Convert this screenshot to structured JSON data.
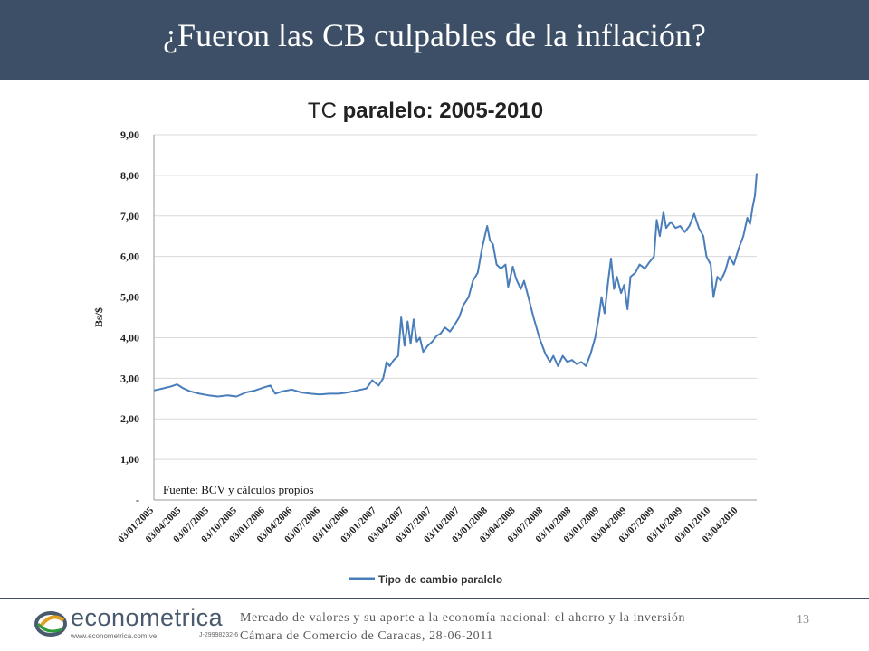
{
  "slide": {
    "title": "¿Fueron las CB culpables de la inflación?",
    "page_number": "13",
    "footer_line1": "Mercado de valores y su aporte a la economía nacional: el ahorro y la inversión",
    "footer_line2": "Cámara de Comercio de Caracas, 28-06-2011"
  },
  "logo": {
    "name": "econometrica",
    "url": "www.econometrica.com.ve",
    "rif": "J-29998232-6"
  },
  "colors": {
    "header": "#3d4f66",
    "series": "#4a7ebb",
    "grid": "#d9d9d9"
  },
  "chart_data": {
    "type": "line",
    "title_prefix": "TC ",
    "title_bold": "paralelo: 2005-2010",
    "ylabel": "Bs/$",
    "ylim": [
      0,
      9
    ],
    "y_ticks": [
      {
        "value": 0,
        "label": "-"
      },
      {
        "value": 1,
        "label": "1,00"
      },
      {
        "value": 2,
        "label": "2,00"
      },
      {
        "value": 3,
        "label": "3,00"
      },
      {
        "value": 4,
        "label": "4,00"
      },
      {
        "value": 5,
        "label": "5,00"
      },
      {
        "value": 6,
        "label": "6,00"
      },
      {
        "value": 7,
        "label": "7,00"
      },
      {
        "value": 8,
        "label": "8,00"
      },
      {
        "value": 9,
        "label": "9,00"
      }
    ],
    "x_range": [
      "2005-01-03",
      "2010-06-03"
    ],
    "x_tick_labels": [
      "03/01/2005",
      "03/04/2005",
      "03/07/2005",
      "03/10/2005",
      "03/01/2006",
      "03/04/2006",
      "03/07/2006",
      "03/10/2006",
      "03/01/2007",
      "03/04/2007",
      "03/07/2007",
      "03/10/2007",
      "03/01/2008",
      "03/04/2008",
      "03/07/2008",
      "03/10/2008",
      "03/01/2009",
      "03/04/2009",
      "03/07/2009",
      "03/10/2009",
      "03/01/2010",
      "03/04/2010"
    ],
    "grid": true,
    "legend": "bottom",
    "annotation": "Fuente: BCV y cálculos propios",
    "series": [
      {
        "name": "Tipo de cambio paralelo",
        "points": [
          [
            "2005-01-03",
            2.7
          ],
          [
            "2005-02-01",
            2.75
          ],
          [
            "2005-03-01",
            2.8
          ],
          [
            "2005-03-20",
            2.85
          ],
          [
            "2005-04-10",
            2.75
          ],
          [
            "2005-05-01",
            2.68
          ],
          [
            "2005-06-01",
            2.62
          ],
          [
            "2005-07-01",
            2.58
          ],
          [
            "2005-08-01",
            2.55
          ],
          [
            "2005-09-01",
            2.58
          ],
          [
            "2005-10-01",
            2.55
          ],
          [
            "2005-11-01",
            2.65
          ],
          [
            "2005-12-01",
            2.7
          ],
          [
            "2006-01-01",
            2.78
          ],
          [
            "2006-01-20",
            2.82
          ],
          [
            "2006-02-05",
            2.62
          ],
          [
            "2006-03-01",
            2.68
          ],
          [
            "2006-04-01",
            2.72
          ],
          [
            "2006-05-01",
            2.65
          ],
          [
            "2006-06-01",
            2.62
          ],
          [
            "2006-07-01",
            2.6
          ],
          [
            "2006-08-01",
            2.62
          ],
          [
            "2006-09-01",
            2.62
          ],
          [
            "2006-10-01",
            2.65
          ],
          [
            "2006-11-01",
            2.7
          ],
          [
            "2006-12-01",
            2.75
          ],
          [
            "2006-12-20",
            2.95
          ],
          [
            "2007-01-10",
            2.82
          ],
          [
            "2007-01-25",
            3.0
          ],
          [
            "2007-02-05",
            3.4
          ],
          [
            "2007-02-15",
            3.3
          ],
          [
            "2007-03-01",
            3.45
          ],
          [
            "2007-03-15",
            3.55
          ],
          [
            "2007-03-25",
            4.5
          ],
          [
            "2007-04-05",
            3.8
          ],
          [
            "2007-04-15",
            4.4
          ],
          [
            "2007-04-25",
            3.85
          ],
          [
            "2007-05-05",
            4.45
          ],
          [
            "2007-05-15",
            3.9
          ],
          [
            "2007-05-25",
            4.0
          ],
          [
            "2007-06-05",
            3.65
          ],
          [
            "2007-06-20",
            3.8
          ],
          [
            "2007-07-05",
            3.9
          ],
          [
            "2007-07-20",
            4.05
          ],
          [
            "2007-08-01",
            4.1
          ],
          [
            "2007-08-15",
            4.25
          ],
          [
            "2007-09-01",
            4.15
          ],
          [
            "2007-09-15",
            4.3
          ],
          [
            "2007-10-01",
            4.5
          ],
          [
            "2007-10-15",
            4.8
          ],
          [
            "2007-11-01",
            5.0
          ],
          [
            "2007-11-15",
            5.4
          ],
          [
            "2007-12-01",
            5.6
          ],
          [
            "2007-12-15",
            6.2
          ],
          [
            "2008-01-01",
            6.75
          ],
          [
            "2008-01-10",
            6.4
          ],
          [
            "2008-01-20",
            6.3
          ],
          [
            "2008-02-01",
            5.8
          ],
          [
            "2008-02-15",
            5.7
          ],
          [
            "2008-03-01",
            5.8
          ],
          [
            "2008-03-10",
            5.25
          ],
          [
            "2008-03-25",
            5.75
          ],
          [
            "2008-04-05",
            5.45
          ],
          [
            "2008-04-20",
            5.2
          ],
          [
            "2008-05-01",
            5.4
          ],
          [
            "2008-05-15",
            5.0
          ],
          [
            "2008-06-01",
            4.5
          ],
          [
            "2008-06-20",
            4.0
          ],
          [
            "2008-07-10",
            3.6
          ],
          [
            "2008-07-25",
            3.4
          ],
          [
            "2008-08-05",
            3.55
          ],
          [
            "2008-08-20",
            3.3
          ],
          [
            "2008-09-05",
            3.55
          ],
          [
            "2008-09-20",
            3.4
          ],
          [
            "2008-10-05",
            3.45
          ],
          [
            "2008-10-20",
            3.35
          ],
          [
            "2008-11-05",
            3.4
          ],
          [
            "2008-11-20",
            3.3
          ],
          [
            "2008-12-05",
            3.6
          ],
          [
            "2008-12-20",
            4.0
          ],
          [
            "2009-01-01",
            4.5
          ],
          [
            "2009-01-10",
            5.0
          ],
          [
            "2009-01-20",
            4.6
          ],
          [
            "2009-02-01",
            5.4
          ],
          [
            "2009-02-10",
            5.95
          ],
          [
            "2009-02-20",
            5.2
          ],
          [
            "2009-03-01",
            5.5
          ],
          [
            "2009-03-15",
            5.1
          ],
          [
            "2009-03-25",
            5.3
          ],
          [
            "2009-04-05",
            4.7
          ],
          [
            "2009-04-15",
            5.5
          ],
          [
            "2009-05-01",
            5.6
          ],
          [
            "2009-05-15",
            5.8
          ],
          [
            "2009-06-01",
            5.7
          ],
          [
            "2009-06-15",
            5.85
          ],
          [
            "2009-07-01",
            6.0
          ],
          [
            "2009-07-10",
            6.9
          ],
          [
            "2009-07-20",
            6.5
          ],
          [
            "2009-08-01",
            7.1
          ],
          [
            "2009-08-10",
            6.7
          ],
          [
            "2009-08-25",
            6.85
          ],
          [
            "2009-09-10",
            6.7
          ],
          [
            "2009-09-25",
            6.75
          ],
          [
            "2009-10-10",
            6.6
          ],
          [
            "2009-10-25",
            6.75
          ],
          [
            "2009-11-10",
            7.05
          ],
          [
            "2009-11-25",
            6.7
          ],
          [
            "2009-12-10",
            6.5
          ],
          [
            "2009-12-20",
            6.0
          ],
          [
            "2010-01-03",
            5.8
          ],
          [
            "2010-01-12",
            5.0
          ],
          [
            "2010-01-25",
            5.5
          ],
          [
            "2010-02-05",
            5.4
          ],
          [
            "2010-02-20",
            5.65
          ],
          [
            "2010-03-05",
            6.0
          ],
          [
            "2010-03-20",
            5.8
          ],
          [
            "2010-04-05",
            6.2
          ],
          [
            "2010-04-20",
            6.5
          ],
          [
            "2010-05-03",
            6.95
          ],
          [
            "2010-05-12",
            6.8
          ],
          [
            "2010-05-20",
            7.2
          ],
          [
            "2010-05-28",
            7.5
          ],
          [
            "2010-06-03",
            8.05
          ]
        ]
      }
    ]
  }
}
